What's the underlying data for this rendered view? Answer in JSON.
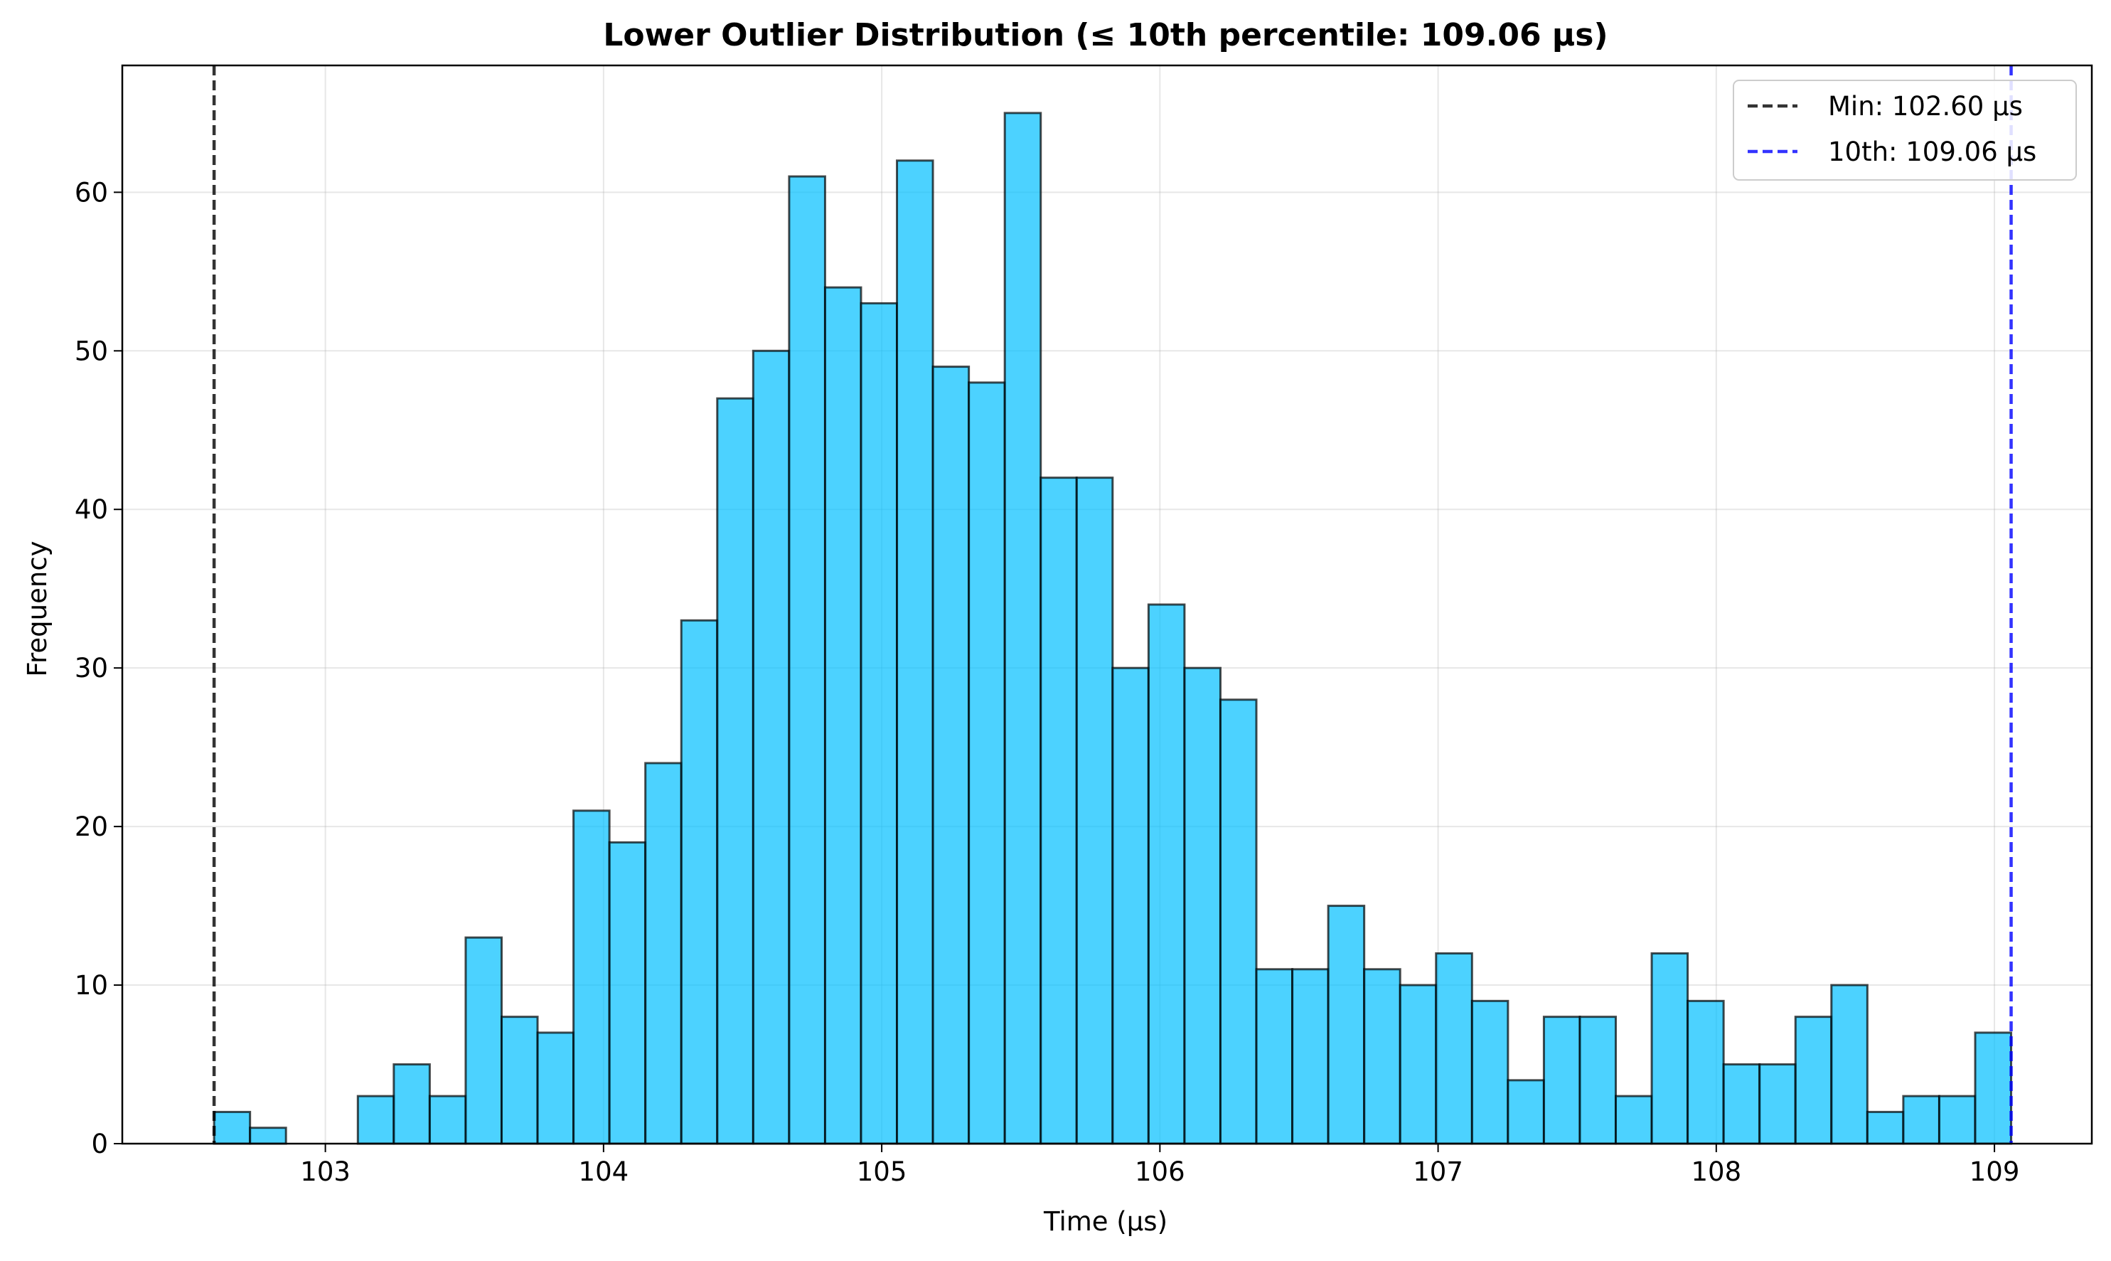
{
  "chart_data": {
    "type": "bar",
    "title": "Lower Outlier Distribution (≤ 10th percentile: 109.06 μs)",
    "xlabel": "Time (μs)",
    "ylabel": "Frequency",
    "xlim": [
      102.27,
      109.35
    ],
    "ylim": [
      0,
      68
    ],
    "xticks": [
      103,
      104,
      105,
      106,
      107,
      108,
      109
    ],
    "yticks": [
      0,
      10,
      20,
      30,
      40,
      50,
      60
    ],
    "grid": true,
    "legend_position": "top-right",
    "bin_start": 102.6,
    "bin_end": 109.06,
    "bin_count": 50,
    "values": [
      2,
      1,
      0,
      0,
      3,
      5,
      3,
      13,
      8,
      7,
      21,
      19,
      24,
      33,
      47,
      50,
      61,
      54,
      53,
      62,
      49,
      48,
      65,
      42,
      42,
      30,
      34,
      30,
      28,
      11,
      11,
      15,
      11,
      10,
      12,
      9,
      4,
      8,
      8,
      3,
      12,
      9,
      5,
      5,
      8,
      10,
      2,
      3,
      3,
      7
    ],
    "bar_color": "#00bfff",
    "bar_edge_color": "#000000",
    "reference_lines": [
      {
        "name": "Min: 102.60 μs",
        "x": 102.6,
        "color": "#000000",
        "style": "dashed"
      },
      {
        "name": "10th: 109.06 μs",
        "x": 109.06,
        "color": "#0000ff",
        "style": "dashed"
      }
    ]
  }
}
